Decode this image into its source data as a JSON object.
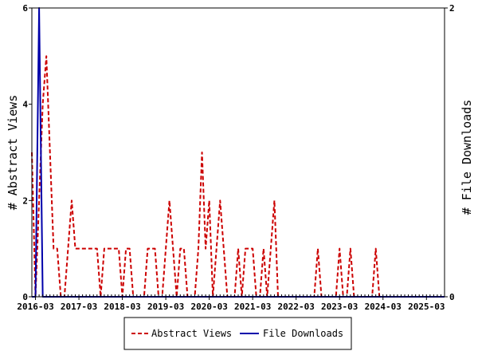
{
  "chart_data": {
    "type": "line",
    "title": "",
    "xlabel": "",
    "ylabel": "# Abstract Views",
    "y2label": "# File Downloads",
    "ylim": [
      0,
      6
    ],
    "y2lim": [
      0,
      2
    ],
    "yticks": [
      0,
      2,
      4,
      6
    ],
    "y2ticks": [
      0,
      2
    ],
    "x_start": "2016-02",
    "x_end": "2025-08",
    "xtick_labels": [
      "2016-03",
      "2017-03",
      "2018-03",
      "2019-03",
      "2020-03",
      "2021-03",
      "2022-03",
      "2023-03",
      "2024-03",
      "2025-03"
    ],
    "grid": false,
    "legend_position": "bottom",
    "series": [
      {
        "name": "Abstract Views",
        "axis": "left",
        "style": "dashed",
        "color": "#cc0000",
        "points": [
          [
            "2016-02",
            3
          ],
          [
            "2016-03",
            0
          ],
          [
            "2016-04",
            2
          ],
          [
            "2016-05",
            4
          ],
          [
            "2016-06",
            5
          ],
          [
            "2016-07",
            3
          ],
          [
            "2016-08",
            1
          ],
          [
            "2016-09",
            1
          ],
          [
            "2016-10",
            0
          ],
          [
            "2016-11",
            0
          ],
          [
            "2016-12",
            1
          ],
          [
            "2017-01",
            2
          ],
          [
            "2017-02",
            1
          ],
          [
            "2017-03",
            1
          ],
          [
            "2017-04",
            1
          ],
          [
            "2017-05",
            1
          ],
          [
            "2017-06",
            1
          ],
          [
            "2017-07",
            1
          ],
          [
            "2017-08",
            1
          ],
          [
            "2017-09",
            0
          ],
          [
            "2017-10",
            1
          ],
          [
            "2017-11",
            1
          ],
          [
            "2017-12",
            1
          ],
          [
            "2018-01",
            1
          ],
          [
            "2018-02",
            1
          ],
          [
            "2018-03",
            0
          ],
          [
            "2018-04",
            1
          ],
          [
            "2018-05",
            1
          ],
          [
            "2018-06",
            0
          ],
          [
            "2018-07",
            0
          ],
          [
            "2018-08",
            0
          ],
          [
            "2018-09",
            0
          ],
          [
            "2018-10",
            1
          ],
          [
            "2018-11",
            1
          ],
          [
            "2018-12",
            1
          ],
          [
            "2019-01",
            0
          ],
          [
            "2019-02",
            0
          ],
          [
            "2019-03",
            1
          ],
          [
            "2019-04",
            2
          ],
          [
            "2019-05",
            1
          ],
          [
            "2019-06",
            0
          ],
          [
            "2019-07",
            1
          ],
          [
            "2019-08",
            1
          ],
          [
            "2019-09",
            0
          ],
          [
            "2019-10",
            0
          ],
          [
            "2019-11",
            0
          ],
          [
            "2019-12",
            1
          ],
          [
            "2020-01",
            3
          ],
          [
            "2020-02",
            1
          ],
          [
            "2020-03",
            2
          ],
          [
            "2020-04",
            0
          ],
          [
            "2020-05",
            1
          ],
          [
            "2020-06",
            2
          ],
          [
            "2020-07",
            1
          ],
          [
            "2020-08",
            0
          ],
          [
            "2020-09",
            0
          ],
          [
            "2020-10",
            0
          ],
          [
            "2020-11",
            1
          ],
          [
            "2020-12",
            0
          ],
          [
            "2021-01",
            1
          ],
          [
            "2021-02",
            1
          ],
          [
            "2021-03",
            1
          ],
          [
            "2021-04",
            0
          ],
          [
            "2021-05",
            0
          ],
          [
            "2021-06",
            1
          ],
          [
            "2021-07",
            0
          ],
          [
            "2021-08",
            1
          ],
          [
            "2021-09",
            2
          ],
          [
            "2021-10",
            0
          ],
          [
            "2021-11",
            0
          ],
          [
            "2021-12",
            0
          ],
          [
            "2022-01",
            0
          ],
          [
            "2022-02",
            0
          ],
          [
            "2022-03",
            0
          ],
          [
            "2022-04",
            0
          ],
          [
            "2022-05",
            0
          ],
          [
            "2022-06",
            0
          ],
          [
            "2022-07",
            0
          ],
          [
            "2022-08",
            0
          ],
          [
            "2022-09",
            1
          ],
          [
            "2022-10",
            0
          ],
          [
            "2022-11",
            0
          ],
          [
            "2022-12",
            0
          ],
          [
            "2023-01",
            0
          ],
          [
            "2023-02",
            0
          ],
          [
            "2023-03",
            1
          ],
          [
            "2023-04",
            0
          ],
          [
            "2023-05",
            0
          ],
          [
            "2023-06",
            1
          ],
          [
            "2023-07",
            0
          ],
          [
            "2023-08",
            0
          ],
          [
            "2023-09",
            0
          ],
          [
            "2023-10",
            0
          ],
          [
            "2023-11",
            0
          ],
          [
            "2023-12",
            0
          ],
          [
            "2024-01",
            1
          ],
          [
            "2024-02",
            0
          ],
          [
            "2024-03",
            0
          ],
          [
            "2025-08",
            0
          ]
        ]
      },
      {
        "name": "File Downloads",
        "axis": "right",
        "style": "solid",
        "color": "#0000aa",
        "points": [
          [
            "2016-02",
            0
          ],
          [
            "2016-03",
            0
          ],
          [
            "2016-04",
            2
          ],
          [
            "2016-05",
            0
          ],
          [
            "2016-06",
            0
          ],
          [
            "2025-08",
            0
          ]
        ]
      }
    ]
  }
}
